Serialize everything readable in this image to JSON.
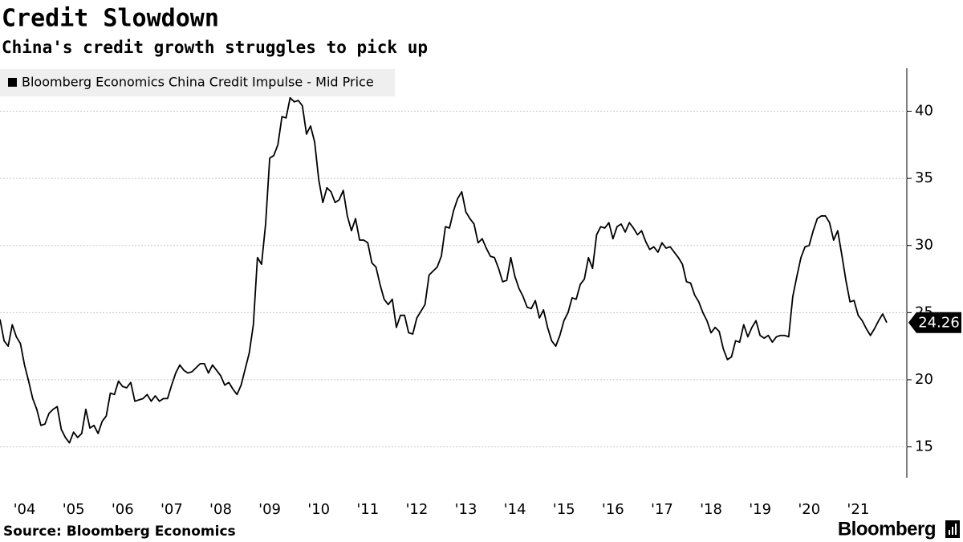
{
  "chart_data": {
    "type": "line",
    "title": "Credit Slowdown",
    "subtitle": "China's credit growth struggles to pick up",
    "source": "Source: Bloomberg Economics",
    "brand": "Bloomberg",
    "categories": [
      null,
      null,
      null,
      null,
      null,
      null,
      "'04",
      null,
      null,
      null,
      null,
      null,
      null,
      null,
      null,
      null,
      null,
      null,
      "'05",
      null,
      null,
      null,
      null,
      null,
      null,
      null,
      null,
      null,
      null,
      null,
      "'06",
      null,
      null,
      null,
      null,
      null,
      null,
      null,
      null,
      null,
      null,
      null,
      "'07",
      null,
      null,
      null,
      null,
      null,
      null,
      null,
      null,
      null,
      null,
      null,
      "'08",
      null,
      null,
      null,
      null,
      null,
      null,
      null,
      null,
      null,
      null,
      null,
      "'09",
      null,
      null,
      null,
      null,
      null,
      null,
      null,
      null,
      null,
      null,
      null,
      "'10",
      null,
      null,
      null,
      null,
      null,
      null,
      null,
      null,
      null,
      null,
      null,
      "'11",
      null,
      null,
      null,
      null,
      null,
      null,
      null,
      null,
      null,
      null,
      null,
      "'12",
      null,
      null,
      null,
      null,
      null,
      null,
      null,
      null,
      null,
      null,
      null,
      "'13",
      null,
      null,
      null,
      null,
      null,
      null,
      null,
      null,
      null,
      null,
      null,
      "'14",
      null,
      null,
      null,
      null,
      null,
      null,
      null,
      null,
      null,
      null,
      null,
      "'15",
      null,
      null,
      null,
      null,
      null,
      null,
      null,
      null,
      null,
      null,
      null,
      "'16",
      null,
      null,
      null,
      null,
      null,
      null,
      null,
      null,
      null,
      null,
      null,
      "'17",
      null,
      null,
      null,
      null,
      null,
      null,
      null,
      null,
      null,
      null,
      null,
      "'18",
      null,
      null,
      null,
      null,
      null,
      null,
      null,
      null,
      null,
      null,
      null,
      "'19",
      null,
      null,
      null,
      null,
      null,
      null,
      null,
      null,
      null,
      null,
      null,
      "'20",
      null,
      null,
      null,
      null,
      null,
      null,
      null,
      null,
      null,
      null,
      null,
      "'21",
      null,
      null,
      null,
      null,
      null,
      null,
      null
    ],
    "series": [
      {
        "name": "Bloomberg Economics China Credit Impulse - Mid Price",
        "color": "#000000",
        "values": [
          24.5,
          22.9,
          22.5,
          24.1,
          23.2,
          22.7,
          21.1,
          19.9,
          18.6,
          17.8,
          16.6,
          16.7,
          17.5,
          17.8,
          18.0,
          16.3,
          15.7,
          15.3,
          16.1,
          15.7,
          16.0,
          17.8,
          16.4,
          16.6,
          16.0,
          16.9,
          17.3,
          19.0,
          18.9,
          19.9,
          19.5,
          19.4,
          19.8,
          18.4,
          18.5,
          18.6,
          18.9,
          18.4,
          18.8,
          18.4,
          18.6,
          18.6,
          19.6,
          20.5,
          21.1,
          20.7,
          20.5,
          20.6,
          20.9,
          21.2,
          21.2,
          20.5,
          21.1,
          20.7,
          20.3,
          19.6,
          19.8,
          19.3,
          18.9,
          19.6,
          20.8,
          22.0,
          24.1,
          29.1,
          28.6,
          31.6,
          36.5,
          36.7,
          37.5,
          39.6,
          39.5,
          41.0,
          40.7,
          40.8,
          40.4,
          38.3,
          38.9,
          37.7,
          34.9,
          33.2,
          34.3,
          34.0,
          33.2,
          33.4,
          34.1,
          32.2,
          31.1,
          32.0,
          30.4,
          30.4,
          30.2,
          28.7,
          28.4,
          27.1,
          26.0,
          25.6,
          26.0,
          23.9,
          24.8,
          24.8,
          23.5,
          23.4,
          24.6,
          25.1,
          25.6,
          27.8,
          28.1,
          28.4,
          29.2,
          31.4,
          31.3,
          32.6,
          33.5,
          34.0,
          32.5,
          32.0,
          31.6,
          30.2,
          30.5,
          29.8,
          29.2,
          29.1,
          28.3,
          27.3,
          27.4,
          29.1,
          27.7,
          26.8,
          26.2,
          25.4,
          25.3,
          25.9,
          24.6,
          25.2,
          23.9,
          22.9,
          22.5,
          23.3,
          24.4,
          25.0,
          26.1,
          26.0,
          27.1,
          27.5,
          29.1,
          28.3,
          30.8,
          31.4,
          31.3,
          31.7,
          30.5,
          31.4,
          31.6,
          31.0,
          31.7,
          31.3,
          30.8,
          31.1,
          30.3,
          29.7,
          29.9,
          29.5,
          30.2,
          29.8,
          29.9,
          29.5,
          29.1,
          28.6,
          27.3,
          27.2,
          26.3,
          25.8,
          25.0,
          24.4,
          23.5,
          23.9,
          23.6,
          22.3,
          21.5,
          21.7,
          22.9,
          22.8,
          24.1,
          23.2,
          23.9,
          24.4,
          23.3,
          23.1,
          23.3,
          22.8,
          23.2,
          23.3,
          23.3,
          23.2,
          26.2,
          27.7,
          29.1,
          29.9,
          30.0,
          31.1,
          32.0,
          32.2,
          32.2,
          31.7,
          30.4,
          31.1,
          29.3,
          27.4,
          25.8,
          25.9,
          24.8,
          24.4,
          23.8,
          23.3,
          23.8,
          24.4,
          24.9,
          24.26
        ]
      }
    ],
    "ylim": [
      12.7,
      43.2
    ],
    "yticks": [
      15,
      20,
      25,
      30,
      35,
      40
    ],
    "grid": true,
    "legend": "top-left",
    "last_value_callout": true
  }
}
